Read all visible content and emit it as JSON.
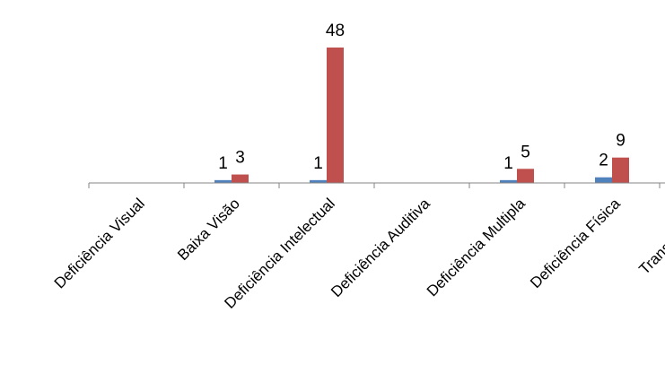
{
  "chart_data": {
    "type": "bar",
    "categories": [
      "Deficiência Visual",
      "Baixa Visão",
      "Deficiência Intelectual",
      "Deficiência Auditiva",
      "Deficiência Multipla",
      "Deficiência Física",
      "Transtornos Gl"
    ],
    "series": [
      {
        "values": [
          null,
          1,
          1,
          null,
          1,
          2,
          null
        ],
        "color": "#4f81bd"
      },
      {
        "values": [
          null,
          3,
          48,
          null,
          5,
          9,
          null
        ],
        "color": "#c0504d"
      }
    ],
    "title": "",
    "xlabel": "",
    "ylabel": "",
    "ylim": [
      0,
      48
    ],
    "grid": false,
    "legend": "none"
  }
}
